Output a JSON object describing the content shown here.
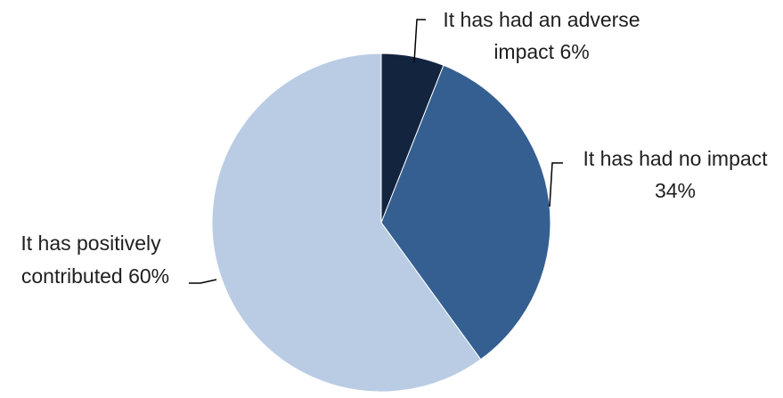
{
  "chart_data": {
    "type": "pie",
    "title": "",
    "slices": [
      {
        "label_lines": [
          "It has had an adverse",
          "impact  6%"
        ],
        "value": 6,
        "color": "#13243f"
      },
      {
        "label_lines": [
          "It has had no impact",
          "34%"
        ],
        "value": 34,
        "color": "#355f91"
      },
      {
        "label_lines": [
          "It has positively",
          "contributed 60%"
        ],
        "value": 60,
        "color": "#b9cce4"
      }
    ],
    "start_angle_deg": 0,
    "direction": "clockwise",
    "legend": "none"
  }
}
